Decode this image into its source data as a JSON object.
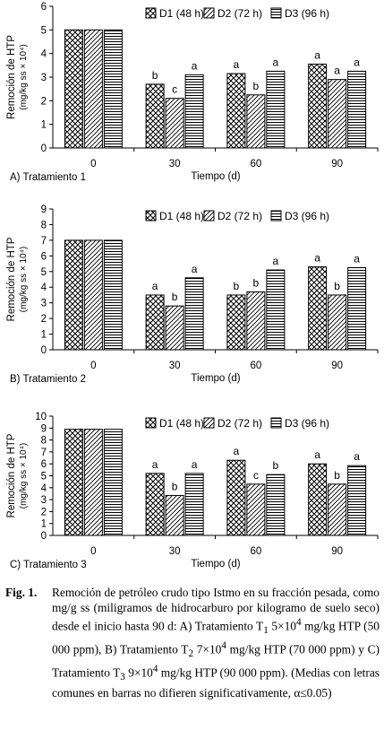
{
  "figure": {
    "caption_label": "Fig. 1.",
    "caption_html": "Remoción de petróleo crudo tipo Istmo en su fracción pesada, como mg/g ss (miligramos de hidrocarburo por kilogramo de suelo seco) desde el inicio hasta 90 d: A) Tratamiento T<sub>1</sub> 5×10<sup>4</sup> mg/kg HTP (50 000 ppm), B) Tratamiento T<sub>2</sub> 7×10<sup>4</sup> mg/kg HTP (70 000 ppm) y C) Tratamiento T<sub>3</sub> 9×10<sup>4</sup> mg/kg HTP (90 000 ppm). (Medias con letras comunes en barras no difieren significativamente, α≤0.05)"
  },
  "chart_data": [
    {
      "type": "bar",
      "panel_label": "A) Tratamiento 1",
      "xlabel": "Tiempo (d)",
      "ylabel": [
        "Remoción de HTP",
        "(mg/kg ss × 10⁴)"
      ],
      "categories": [
        "0",
        "30",
        "60",
        "90"
      ],
      "ylim": [
        0,
        6
      ],
      "yticks": [
        0,
        1,
        2,
        3,
        4,
        5,
        6
      ],
      "legend_position": "top-right",
      "series": [
        {
          "name": "D1 (48 h)",
          "pattern": "crosshatch",
          "values": [
            5.0,
            2.7,
            3.15,
            3.55
          ],
          "labels": [
            "",
            "b",
            "a",
            "a"
          ]
        },
        {
          "name": "D2 (72 h)",
          "pattern": "diagonal",
          "values": [
            5.0,
            2.1,
            2.25,
            2.9
          ],
          "labels": [
            "",
            "c",
            "b",
            "a"
          ]
        },
        {
          "name": "D3 (96 h)",
          "pattern": "horizontal",
          "values": [
            5.0,
            3.1,
            3.25,
            3.25
          ],
          "labels": [
            "",
            "a",
            "a",
            "a"
          ]
        }
      ]
    },
    {
      "type": "bar",
      "panel_label": "B) Tratamiento 2",
      "xlabel": "Tiempo (d)",
      "ylabel": [
        "Remoción de HTP",
        "(mg/kg ss × 10⁴)"
      ],
      "categories": [
        "0",
        "30",
        "60",
        "90"
      ],
      "ylim": [
        0,
        9
      ],
      "yticks": [
        0,
        1,
        2,
        3,
        4,
        5,
        6,
        7,
        8,
        9
      ],
      "legend_position": "top-right",
      "series": [
        {
          "name": "D1 (48 h)",
          "pattern": "crosshatch",
          "values": [
            7.0,
            3.5,
            3.5,
            5.3
          ],
          "labels": [
            "",
            "a",
            "b",
            "a"
          ]
        },
        {
          "name": "D2 (72 h)",
          "pattern": "diagonal",
          "values": [
            7.0,
            2.8,
            3.7,
            3.5
          ],
          "labels": [
            "",
            "b",
            "b",
            "b"
          ]
        },
        {
          "name": "D3 (96 h)",
          "pattern": "horizontal",
          "values": [
            7.0,
            4.6,
            5.1,
            5.25
          ],
          "labels": [
            "",
            "a",
            "a",
            "a"
          ]
        }
      ]
    },
    {
      "type": "bar",
      "panel_label": "C) Tratamiento 3",
      "xlabel": "Tiempo (d)",
      "ylabel": [
        "Remoción de HTP",
        "(mg/kg ss × 10⁴)"
      ],
      "categories": [
        "0",
        "30",
        "60",
        "90"
      ],
      "ylim": [
        0,
        10
      ],
      "yticks": [
        0,
        1,
        2,
        3,
        4,
        5,
        6,
        7,
        8,
        9,
        10
      ],
      "legend_position": "top-right",
      "series": [
        {
          "name": "D1 (48 h)",
          "pattern": "crosshatch",
          "values": [
            8.9,
            5.2,
            6.3,
            6.0
          ],
          "labels": [
            "",
            "a",
            "a",
            "a"
          ]
        },
        {
          "name": "D2 (72 h)",
          "pattern": "diagonal",
          "values": [
            8.9,
            3.35,
            4.3,
            4.3
          ],
          "labels": [
            "",
            "b",
            "c",
            "b"
          ]
        },
        {
          "name": "D3 (96 h)",
          "pattern": "horizontal",
          "values": [
            8.9,
            5.2,
            5.1,
            5.85
          ],
          "labels": [
            "",
            "a",
            "b",
            "a"
          ]
        }
      ]
    }
  ]
}
